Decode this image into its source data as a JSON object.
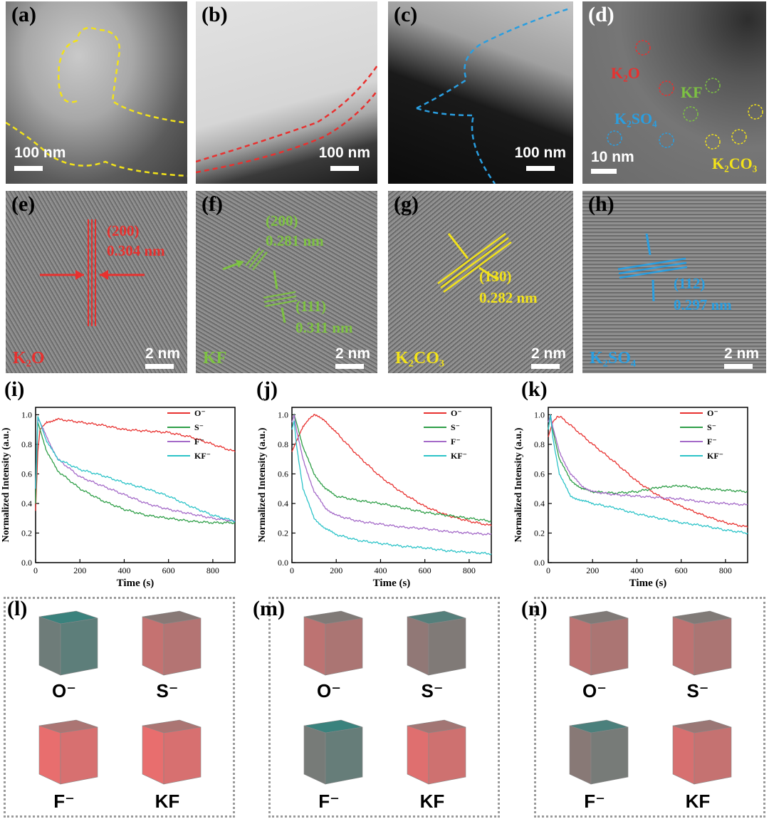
{
  "panels": {
    "a": {
      "label": "(a)",
      "scale": "100 nm"
    },
    "b": {
      "label": "(b)",
      "scale": "100 nm"
    },
    "c": {
      "label": "(c)",
      "scale": "100 nm"
    },
    "d": {
      "label": "(d)",
      "scale": "10 nm",
      "annotations": {
        "k2o": "K₂O",
        "kf": "KF",
        "k2so4": "K₂SO₄",
        "k2co3": "K₂CO₃"
      }
    },
    "e": {
      "label": "(e)",
      "scale": "2 nm",
      "plane": "(200)",
      "spacing": "0.304 nm",
      "phase": "K₂O"
    },
    "f": {
      "label": "(f)",
      "scale": "2 nm",
      "plane1": "(200)",
      "spacing1": "0.281 nm",
      "plane2": "(111)",
      "spacing2": "0.311 nm",
      "phase": "KF"
    },
    "g": {
      "label": "(g)",
      "scale": "2 nm",
      "plane": "(130)",
      "spacing": "0.282 nm",
      "phase": "K₂CO₃"
    },
    "h": {
      "label": "(h)",
      "scale": "2 nm",
      "plane": "(112)",
      "spacing": "0.297 nm",
      "phase": "K₂SO₄"
    }
  },
  "colors": {
    "O": "#e8312f",
    "S": "#2e9e47",
    "F": "#a46ac8",
    "KF": "#2cc3c8",
    "red_ann": "#e8312f",
    "green_ann": "#7dc242",
    "yellow_ann": "#f2e21a",
    "blue_ann": "#2a9ee0"
  },
  "chart_data": [
    {
      "type": "line",
      "label": "(i)",
      "xlabel": "Time (s)",
      "ylabel": "Normalized Intensity (a.u.)",
      "xlim": [
        0,
        900
      ],
      "ylim": [
        0,
        1.05
      ],
      "xticks": [
        "0",
        "200",
        "400",
        "600",
        "800"
      ],
      "yticks": [
        "0.0",
        "0.2",
        "0.4",
        "0.6",
        "0.8",
        "1.0"
      ],
      "series": [
        {
          "name": "O⁻",
          "x": [
            0,
            10,
            20,
            50,
            100,
            200,
            300,
            400,
            500,
            600,
            700,
            800,
            900
          ],
          "y": [
            0.35,
            0.75,
            0.9,
            0.95,
            0.97,
            0.95,
            0.93,
            0.9,
            0.89,
            0.88,
            0.85,
            0.8,
            0.75
          ]
        },
        {
          "name": "S⁻",
          "x": [
            0,
            10,
            20,
            50,
            100,
            200,
            300,
            400,
            500,
            600,
            700,
            800,
            900
          ],
          "y": [
            0.4,
            0.95,
            0.9,
            0.75,
            0.62,
            0.5,
            0.42,
            0.36,
            0.32,
            0.3,
            0.28,
            0.27,
            0.27
          ]
        },
        {
          "name": "F⁻",
          "x": [
            0,
            10,
            20,
            50,
            100,
            200,
            300,
            400,
            500,
            600,
            700,
            800,
            900
          ],
          "y": [
            0.5,
            0.97,
            0.95,
            0.85,
            0.7,
            0.58,
            0.52,
            0.46,
            0.4,
            0.36,
            0.33,
            0.3,
            0.28
          ]
        },
        {
          "name": "KF⁻",
          "x": [
            0,
            10,
            20,
            50,
            100,
            200,
            300,
            400,
            500,
            600,
            700,
            800,
            900
          ],
          "y": [
            0.5,
            0.99,
            0.95,
            0.82,
            0.7,
            0.63,
            0.59,
            0.54,
            0.5,
            0.45,
            0.38,
            0.32,
            0.28
          ]
        }
      ]
    },
    {
      "type": "line",
      "label": "(j)",
      "xlabel": "Time (s)",
      "ylabel": "Normalized Intensity (a.u.)",
      "xlim": [
        0,
        900
      ],
      "ylim": [
        0,
        1.05
      ],
      "xticks": [
        "0",
        "200",
        "400",
        "600",
        "800"
      ],
      "yticks": [
        "0.0",
        "0.2",
        "0.4",
        "0.6",
        "0.8",
        "1.0"
      ],
      "series": [
        {
          "name": "O⁻",
          "x": [
            0,
            20,
            50,
            80,
            100,
            150,
            200,
            300,
            400,
            500,
            600,
            700,
            800,
            900
          ],
          "y": [
            0.75,
            0.82,
            0.92,
            0.98,
            1.0,
            0.96,
            0.88,
            0.72,
            0.58,
            0.47,
            0.38,
            0.32,
            0.28,
            0.25
          ]
        },
        {
          "name": "S⁻",
          "x": [
            0,
            10,
            20,
            50,
            100,
            150,
            200,
            300,
            400,
            500,
            600,
            700,
            800,
            900
          ],
          "y": [
            0.95,
            1.0,
            0.95,
            0.78,
            0.6,
            0.5,
            0.45,
            0.42,
            0.4,
            0.37,
            0.34,
            0.32,
            0.3,
            0.28
          ]
        },
        {
          "name": "F⁻",
          "x": [
            0,
            10,
            20,
            50,
            100,
            150,
            200,
            300,
            400,
            500,
            600,
            700,
            800,
            900
          ],
          "y": [
            0.95,
            1.0,
            0.9,
            0.7,
            0.48,
            0.37,
            0.32,
            0.28,
            0.26,
            0.24,
            0.23,
            0.21,
            0.2,
            0.19
          ]
        },
        {
          "name": "KF⁻",
          "x": [
            0,
            10,
            20,
            50,
            100,
            150,
            200,
            300,
            400,
            500,
            600,
            700,
            800,
            900
          ],
          "y": [
            0.9,
            0.96,
            0.8,
            0.5,
            0.3,
            0.23,
            0.19,
            0.15,
            0.13,
            0.11,
            0.1,
            0.08,
            0.07,
            0.06
          ]
        }
      ]
    },
    {
      "type": "line",
      "label": "(k)",
      "xlabel": "Time (s)",
      "ylabel": "Normalized Intensity (a.u.)",
      "xlim": [
        0,
        900
      ],
      "ylim": [
        0,
        1.05
      ],
      "xticks": [
        "0",
        "200",
        "400",
        "600",
        "800"
      ],
      "yticks": [
        "0.0",
        "0.2",
        "0.4",
        "0.6",
        "0.8",
        "1.0"
      ],
      "series": [
        {
          "name": "O⁻",
          "x": [
            0,
            20,
            40,
            60,
            100,
            200,
            300,
            400,
            500,
            600,
            700,
            800,
            900
          ],
          "y": [
            0.85,
            0.95,
            0.99,
            0.98,
            0.93,
            0.8,
            0.68,
            0.55,
            0.45,
            0.38,
            0.32,
            0.27,
            0.24
          ]
        },
        {
          "name": "S⁻",
          "x": [
            0,
            10,
            20,
            50,
            100,
            150,
            200,
            300,
            400,
            500,
            600,
            700,
            800,
            900
          ],
          "y": [
            0.9,
            1.0,
            0.9,
            0.7,
            0.56,
            0.5,
            0.48,
            0.47,
            0.48,
            0.51,
            0.52,
            0.5,
            0.49,
            0.48
          ]
        },
        {
          "name": "F⁻",
          "x": [
            0,
            10,
            20,
            50,
            100,
            150,
            200,
            300,
            400,
            500,
            600,
            700,
            800,
            900
          ],
          "y": [
            0.95,
            1.0,
            0.92,
            0.75,
            0.6,
            0.52,
            0.48,
            0.46,
            0.45,
            0.44,
            0.43,
            0.41,
            0.4,
            0.39
          ]
        },
        {
          "name": "KF⁻",
          "x": [
            0,
            10,
            20,
            50,
            100,
            150,
            200,
            300,
            400,
            500,
            600,
            700,
            800,
            900
          ],
          "y": [
            0.9,
            1.0,
            0.85,
            0.6,
            0.45,
            0.42,
            0.4,
            0.37,
            0.33,
            0.3,
            0.27,
            0.25,
            0.22,
            0.2
          ]
        }
      ]
    }
  ],
  "cubes": [
    {
      "label": "(l)",
      "items": [
        "O⁻",
        "S⁻",
        "F⁻",
        "KF"
      ],
      "teal": [
        0.8,
        0.3,
        0.1,
        0.1
      ]
    },
    {
      "label": "(m)",
      "items": [
        "O⁻",
        "S⁻",
        "F⁻",
        "KF"
      ],
      "teal": [
        0.35,
        0.6,
        0.75,
        0.15
      ]
    },
    {
      "label": "(n)",
      "items": [
        "O⁻",
        "S⁻",
        "F⁻",
        "KF"
      ],
      "teal": [
        0.35,
        0.35,
        0.65,
        0.2
      ]
    }
  ]
}
